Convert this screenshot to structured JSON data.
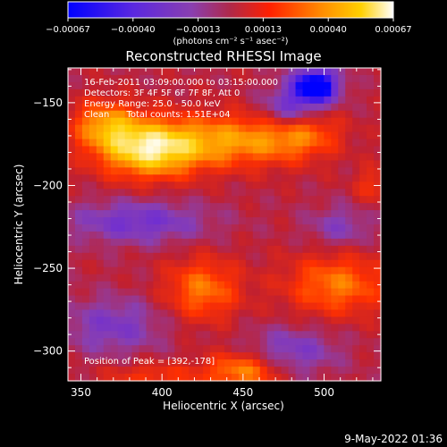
{
  "chart_data": {
    "type": "heatmap",
    "title": "Reconstructed RHESSI Image",
    "xlabel": "Heliocentric X (arcsec)",
    "ylabel": "Heliocentric Y (arcsec)",
    "xlim": [
      342,
      535
    ],
    "ylim": [
      -318,
      -129
    ],
    "xticks": [
      350,
      400,
      450,
      500
    ],
    "yticks": [
      -150,
      -200,
      -250,
      -300
    ],
    "colorbar": {
      "range": [
        -0.00067,
        0.00067
      ],
      "ticks": [
        "-0.00067",
        "-0.00040",
        "-0.00013",
        "0.00013",
        "0.00040",
        "0.00067"
      ],
      "unit_label": "(photons cm⁻² s⁻¹ asec⁻²)",
      "colormap": [
        "#0000ff",
        "#6a2bd9",
        "#8a3fb0",
        "#c02030",
        "#ff3000",
        "#ff8c00",
        "#ffd000",
        "#ffffff"
      ]
    },
    "info_lines": [
      "16-Feb-2011 03:09:00.000 to 03:15:00.000",
      "Detectors: 3F 4F 5F 6F 7F 8F, Att 0",
      "Energy Range: 25.0 - 50.0 keV",
      "Clean      Total counts: 1.51E+04"
    ],
    "peak_text": "Position of Peak = [392,-178]",
    "peak": {
      "x": 392,
      "y": -178
    },
    "sources": [
      {
        "x": 392,
        "y": -178,
        "sx": 22,
        "sy": 12,
        "amp": 0.00067
      },
      {
        "x": 365,
        "y": -163,
        "sx": 14,
        "sy": 10,
        "amp": 0.0004
      },
      {
        "x": 445,
        "y": -173,
        "sx": 30,
        "sy": 11,
        "amp": 0.00042
      },
      {
        "x": 485,
        "y": -168,
        "sx": 16,
        "sy": 10,
        "amp": 0.00032
      },
      {
        "x": 425,
        "y": -263,
        "sx": 16,
        "sy": 13,
        "amp": 0.00036
      },
      {
        "x": 508,
        "y": -260,
        "sx": 22,
        "sy": 13,
        "amp": 0.00036
      },
      {
        "x": 450,
        "y": -312,
        "sx": 16,
        "sy": 8,
        "amp": 0.0004
      },
      {
        "x": 395,
        "y": -315,
        "sx": 22,
        "sy": 6,
        "amp": 0.0002
      },
      {
        "x": 530,
        "y": -200,
        "sx": 8,
        "sy": 8,
        "amp": 0.00018
      },
      {
        "x": 495,
        "y": -140,
        "sx": 10,
        "sy": 8,
        "amp": -0.00067
      },
      {
        "x": 478,
        "y": -155,
        "sx": 12,
        "sy": 10,
        "amp": -0.00035
      },
      {
        "x": 385,
        "y": -222,
        "sx": 30,
        "sy": 9,
        "amp": -0.0003
      },
      {
        "x": 370,
        "y": -285,
        "sx": 22,
        "sy": 12,
        "amp": -0.00025
      },
      {
        "x": 480,
        "y": -300,
        "sx": 20,
        "sy": 10,
        "amp": -0.00025
      },
      {
        "x": 510,
        "y": -225,
        "sx": 14,
        "sy": 9,
        "amp": -0.0002
      }
    ],
    "background_level": -0.00012
  },
  "footer": {
    "timestamp": "9-May-2022 01:36"
  }
}
